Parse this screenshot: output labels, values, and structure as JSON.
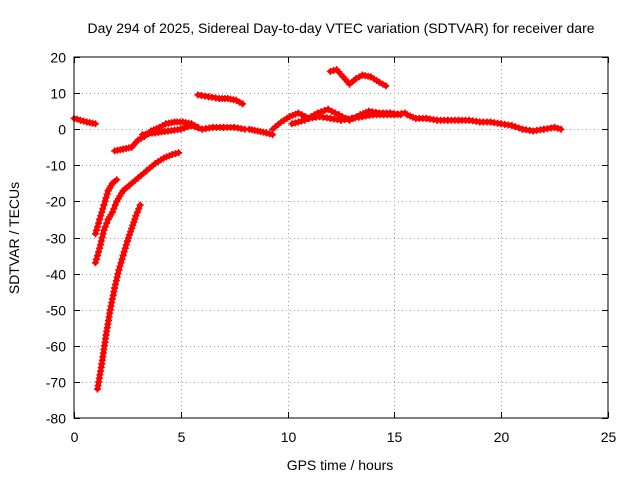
{
  "chart_data": {
    "type": "scatter",
    "title": "Day 294 of 2025, Sidereal Day-to-day VTEC variation (SDTVAR) for receiver dare",
    "xlabel": "GPS time / hours",
    "ylabel": "SDTVAR / TECUs",
    "xlim": [
      0,
      25
    ],
    "ylim": [
      -80,
      20
    ],
    "xticks": [
      0,
      5,
      10,
      15,
      20,
      25
    ],
    "yticks": [
      20,
      10,
      0,
      -10,
      -20,
      -30,
      -40,
      -50,
      -60,
      -70,
      -80
    ],
    "grid": true,
    "legend": "none",
    "marker": "plus",
    "series": [
      {
        "name": "SDTVAR",
        "color": "#ff0000",
        "segments": [
          [
            [
              0.0,
              3.0
            ],
            [
              0.3,
              2.5
            ],
            [
              0.6,
              2.0
            ],
            [
              1.0,
              1.5
            ]
          ],
          [
            [
              1.0,
              -29.0
            ],
            [
              1.2,
              -25.0
            ],
            [
              1.4,
              -21.0
            ],
            [
              1.6,
              -17.0
            ],
            [
              1.8,
              -15.0
            ],
            [
              2.0,
              -14.0
            ]
          ],
          [
            [
              1.0,
              -37.0
            ],
            [
              1.2,
              -33.0
            ],
            [
              1.4,
              -28.0
            ],
            [
              1.6,
              -25.0
            ],
            [
              1.8,
              -23.0
            ],
            [
              2.0,
              -20.0
            ],
            [
              2.3,
              -17.0
            ],
            [
              2.6,
              -15.5
            ],
            [
              3.0,
              -13.5
            ],
            [
              3.4,
              -11.5
            ],
            [
              3.8,
              -9.5
            ],
            [
              4.2,
              -8.0
            ],
            [
              4.6,
              -7.0
            ],
            [
              4.9,
              -6.5
            ]
          ],
          [
            [
              1.1,
              -72.0
            ],
            [
              1.3,
              -65.0
            ],
            [
              1.5,
              -57.0
            ],
            [
              1.7,
              -50.0
            ],
            [
              1.9,
              -44.0
            ],
            [
              2.1,
              -39.0
            ],
            [
              2.3,
              -35.0
            ],
            [
              2.5,
              -31.0
            ],
            [
              2.7,
              -27.5
            ],
            [
              2.9,
              -24.0
            ],
            [
              3.1,
              -21.0
            ]
          ],
          [
            [
              1.9,
              -6.0
            ],
            [
              2.3,
              -5.5
            ],
            [
              2.7,
              -5.0
            ],
            [
              3.0,
              -3.0
            ],
            [
              3.3,
              -2.0
            ],
            [
              3.6,
              -0.5
            ],
            [
              4.0,
              0.5
            ],
            [
              4.3,
              1.5
            ],
            [
              4.7,
              2.0
            ],
            [
              5.1,
              2.0
            ],
            [
              5.5,
              1.5
            ],
            [
              5.8,
              0.5
            ]
          ],
          [
            [
              3.2,
              -1.5
            ],
            [
              3.8,
              -1.0
            ],
            [
              4.4,
              -0.5
            ],
            [
              5.0,
              0.0
            ],
            [
              5.5,
              1.0
            ],
            [
              6.0,
              0.0
            ],
            [
              6.5,
              0.5
            ],
            [
              7.0,
              0.5
            ],
            [
              7.5,
              0.5
            ],
            [
              8.0,
              0.0
            ]
          ],
          [
            [
              5.8,
              9.5
            ],
            [
              6.3,
              9.0
            ],
            [
              6.8,
              8.5
            ],
            [
              7.2,
              8.5
            ],
            [
              7.6,
              8.0
            ],
            [
              7.9,
              7.0
            ]
          ],
          [
            [
              8.2,
              0.0
            ],
            [
              8.6,
              -0.5
            ],
            [
              9.0,
              -1.0
            ],
            [
              9.3,
              -1.5
            ]
          ],
          [
            [
              9.3,
              0.0
            ],
            [
              9.7,
              2.0
            ],
            [
              10.1,
              3.5
            ],
            [
              10.5,
              4.5
            ],
            [
              11.0,
              3.0
            ],
            [
              11.5,
              3.5
            ],
            [
              12.0,
              3.0
            ],
            [
              12.5,
              2.5
            ],
            [
              13.0,
              3.0
            ],
            [
              13.5,
              3.5
            ],
            [
              14.0,
              4.0
            ],
            [
              14.5,
              4.0
            ],
            [
              15.0,
              4.0
            ],
            [
              15.5,
              4.5
            ]
          ],
          [
            [
              10.2,
              1.5
            ],
            [
              10.8,
              2.5
            ],
            [
              11.4,
              4.5
            ],
            [
              11.9,
              5.5
            ],
            [
              12.4,
              4.0
            ],
            [
              12.9,
              2.5
            ],
            [
              13.4,
              4.0
            ],
            [
              13.8,
              5.0
            ],
            [
              14.3,
              4.5
            ],
            [
              14.8,
              4.5
            ],
            [
              15.3,
              4.0
            ]
          ],
          [
            [
              12.0,
              16.0
            ],
            [
              12.3,
              16.5
            ],
            [
              12.6,
              14.5
            ],
            [
              12.9,
              12.5
            ],
            [
              13.2,
              14.0
            ],
            [
              13.5,
              15.0
            ],
            [
              13.9,
              14.5
            ],
            [
              14.3,
              13.0
            ],
            [
              14.6,
              12.0
            ]
          ],
          [
            [
              15.6,
              4.0
            ],
            [
              16.0,
              3.0
            ],
            [
              16.5,
              3.0
            ],
            [
              17.0,
              2.5
            ],
            [
              17.5,
              2.5
            ],
            [
              18.0,
              2.5
            ],
            [
              18.5,
              2.5
            ],
            [
              19.0,
              2.0
            ],
            [
              19.5,
              2.0
            ],
            [
              20.0,
              1.5
            ],
            [
              20.5,
              1.0
            ],
            [
              21.0,
              0.0
            ],
            [
              21.5,
              -0.5
            ],
            [
              22.0,
              0.0
            ],
            [
              22.5,
              0.5
            ],
            [
              22.8,
              0.0
            ]
          ]
        ]
      }
    ]
  }
}
